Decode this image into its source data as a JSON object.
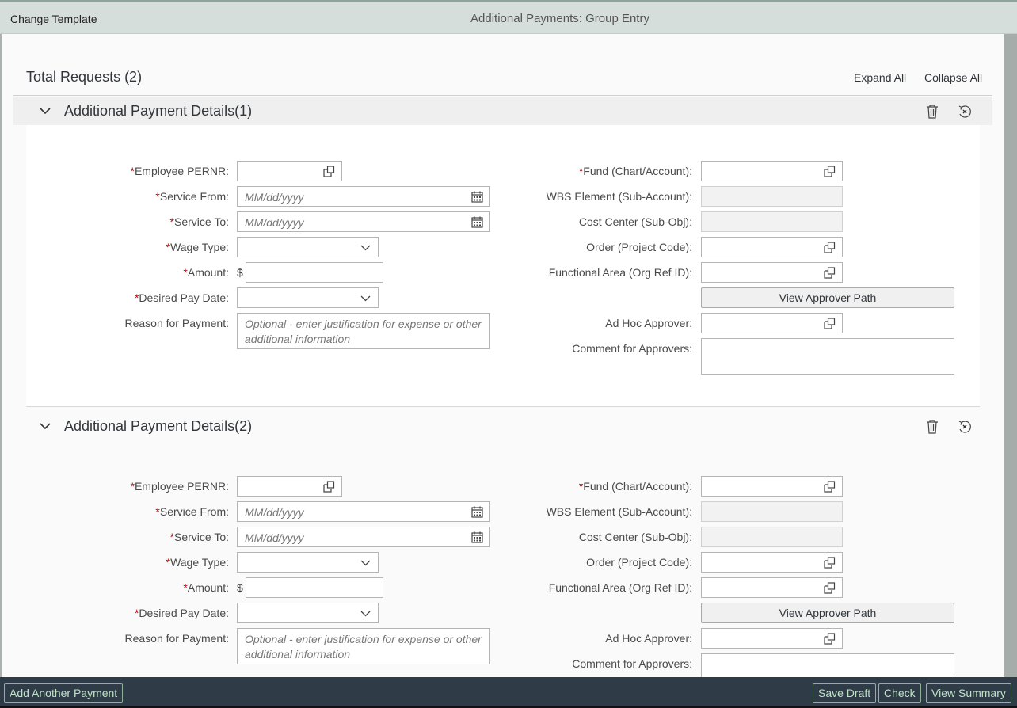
{
  "header": {
    "change_template": "Change Template",
    "title": "Additional Payments: Group Entry"
  },
  "totals": {
    "label": "Total Requests (2)",
    "expand_all": "Expand All",
    "collapse_all": "Collapse All"
  },
  "sections": [
    {
      "title": "Additional Payment Details(1)"
    },
    {
      "title": "Additional Payment Details(2)"
    }
  ],
  "form": {
    "left": [
      {
        "label": "Employee PERNR:",
        "required": true,
        "type": "valuehelp",
        "value": ""
      },
      {
        "label": "Service From:",
        "required": true,
        "type": "date",
        "placeholder": "MM/dd/yyyy"
      },
      {
        "label": "Service To:",
        "required": true,
        "type": "date",
        "placeholder": "MM/dd/yyyy"
      },
      {
        "label": "Wage Type:",
        "required": true,
        "type": "select",
        "value": ""
      },
      {
        "label": "Amount:",
        "required": true,
        "type": "amount",
        "currency": "$",
        "value": ""
      },
      {
        "label": "Desired Pay Date:",
        "required": true,
        "type": "select",
        "value": ""
      },
      {
        "label": "Reason for Payment:",
        "required": false,
        "type": "textarea",
        "placeholder": "Optional - enter justification for expense or other additional information"
      }
    ],
    "right": [
      {
        "label": "Fund (Chart/Account):",
        "required": true,
        "type": "valuehelp",
        "value": ""
      },
      {
        "label": "WBS Element (Sub-Account):",
        "required": false,
        "type": "disabled",
        "value": ""
      },
      {
        "label": "Cost Center (Sub-Obj):",
        "required": false,
        "type": "disabled",
        "value": ""
      },
      {
        "label": "Order (Project Code):",
        "required": false,
        "type": "valuehelp",
        "value": ""
      },
      {
        "label": "Functional Area (Org Ref ID):",
        "required": false,
        "type": "valuehelp",
        "value": ""
      },
      {
        "label": "",
        "type": "button",
        "button": "View Approver Path"
      },
      {
        "label": "Ad Hoc Approver:",
        "required": false,
        "type": "valuehelp",
        "value": ""
      },
      {
        "label": "Comment for Approvers:",
        "required": false,
        "type": "textarea",
        "placeholder": ""
      }
    ]
  },
  "footer": {
    "add_another": "Add Another Payment",
    "save_draft": "Save Draft",
    "check": "Check",
    "view_summary": "View Summary"
  }
}
